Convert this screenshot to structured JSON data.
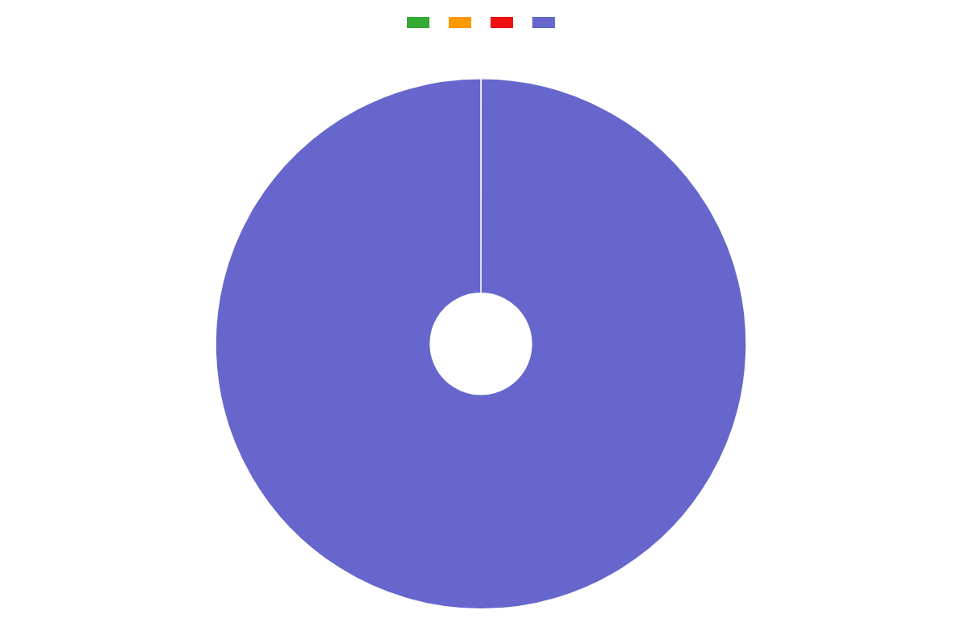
{
  "chart_data": {
    "type": "pie",
    "categories": [
      null,
      null,
      null,
      null
    ],
    "values": [
      0.005,
      0.005,
      0.005,
      99.985
    ],
    "colors": [
      "#33aa33",
      "#ff9900",
      "#ee1111",
      "#6666cc"
    ],
    "legend": "top"
  }
}
